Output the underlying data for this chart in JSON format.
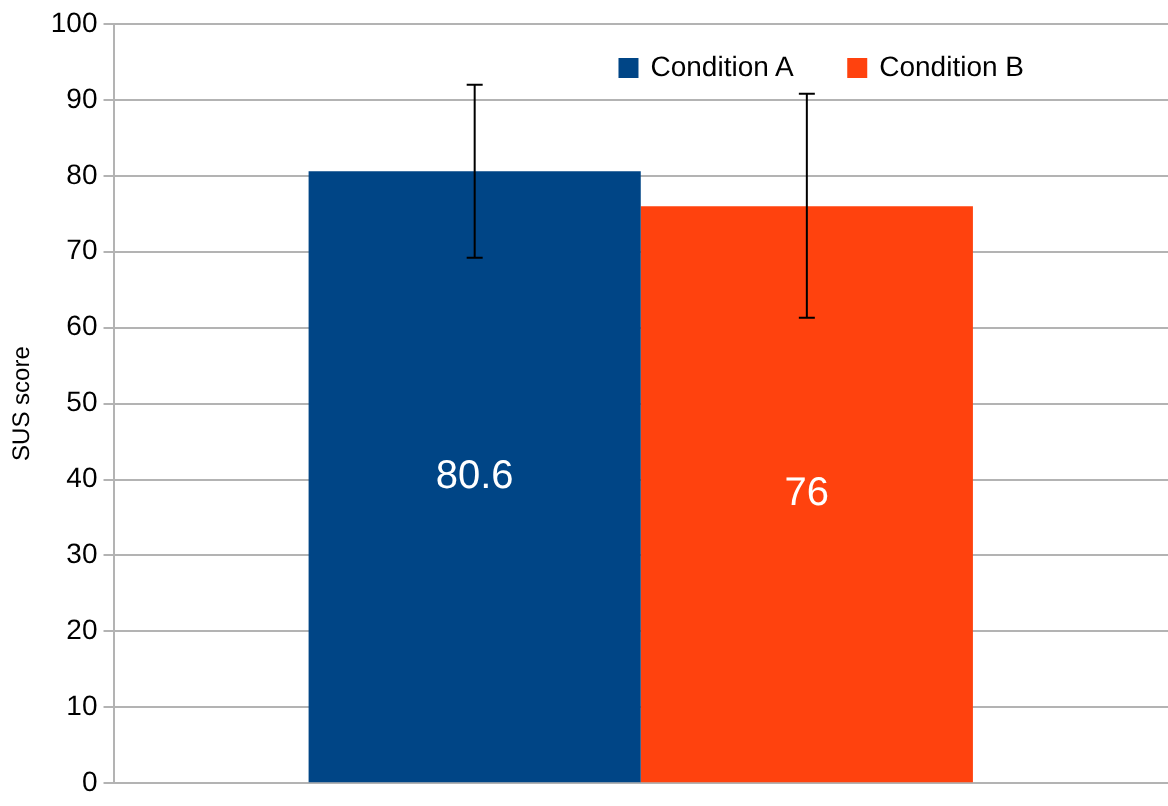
{
  "chart_data": {
    "type": "bar",
    "ylabel": "SUS score",
    "categories": [
      null
    ],
    "series": [
      {
        "name": "Condition A",
        "color": "#004586",
        "values": [
          80.6
        ],
        "errors": [
          [
            69.2,
            92
          ]
        ]
      },
      {
        "name": "Condition B",
        "color": "#ff420e",
        "values": [
          76
        ],
        "errors": [
          [
            61.3,
            90.8
          ]
        ]
      }
    ],
    "ylim": [
      0,
      100
    ],
    "yticks": [
      0,
      10,
      20,
      30,
      40,
      50,
      60,
      70,
      80,
      90,
      100
    ],
    "grid": "y",
    "legend": "top right",
    "data_labels": true
  }
}
